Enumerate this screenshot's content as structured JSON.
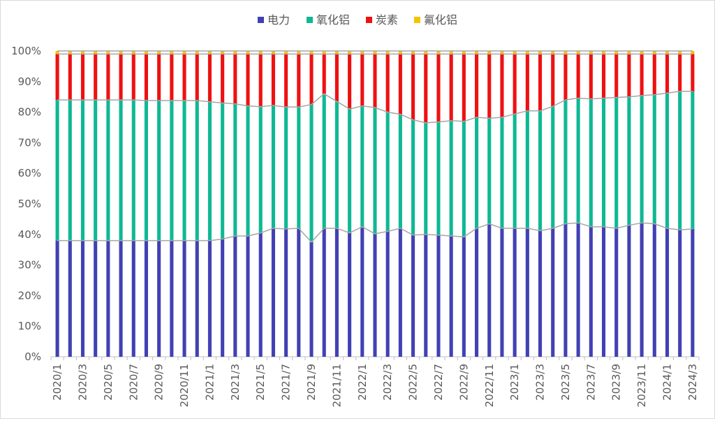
{
  "chart_data": {
    "type": "bar",
    "stacked": true,
    "percent_stacked": true,
    "title": "",
    "xlabel": "",
    "ylabel": "",
    "ylim": [
      0,
      100
    ],
    "yticks": [
      "0%",
      "10%",
      "20%",
      "30%",
      "40%",
      "50%",
      "60%",
      "70%",
      "80%",
      "90%",
      "100%"
    ],
    "legend_position": "top",
    "grid": false,
    "categories": [
      "2020/1",
      "2020/2",
      "2020/3",
      "2020/4",
      "2020/5",
      "2020/6",
      "2020/7",
      "2020/8",
      "2020/9",
      "2020/10",
      "2020/11",
      "2020/12",
      "2021/1",
      "2021/2",
      "2021/3",
      "2021/4",
      "2021/5",
      "2021/6",
      "2021/7",
      "2021/8",
      "2021/9",
      "2021/10",
      "2021/11",
      "2021/12",
      "2022/1",
      "2022/2",
      "2022/3",
      "2022/4",
      "2022/5",
      "2022/6",
      "2022/7",
      "2022/8",
      "2022/9",
      "2022/10",
      "2022/11",
      "2022/12",
      "2023/1",
      "2023/2",
      "2023/3",
      "2023/4",
      "2023/5",
      "2023/6",
      "2023/7",
      "2023/8",
      "2023/9",
      "2023/10",
      "2023/11",
      "2023/12",
      "2024/1",
      "2024/2",
      "2024/3"
    ],
    "xtick_labels": [
      "2020/1",
      "2020/3",
      "2020/5",
      "2020/7",
      "2020/9",
      "2020/11",
      "2021/1",
      "2021/3",
      "2021/5",
      "2021/7",
      "2021/9",
      "2021/11",
      "2022/1",
      "2022/3",
      "2022/5",
      "2022/7",
      "2022/9",
      "2022/11",
      "2023/1",
      "2023/3",
      "2023/5",
      "2023/7",
      "2023/9",
      "2023/11",
      "2024/1",
      "2024/3"
    ],
    "series": [
      {
        "name": "电力",
        "color": "#4141b4",
        "values": [
          38,
          38,
          38,
          38,
          38,
          38,
          38,
          38,
          38,
          38,
          38,
          38,
          38,
          38.5,
          39.5,
          39.5,
          40.5,
          42,
          41.8,
          42,
          37.5,
          42,
          42,
          40.5,
          42.5,
          40.2,
          41,
          42,
          39.8,
          40,
          39.8,
          39.5,
          39.2,
          42,
          43.5,
          42,
          42,
          42,
          41.2,
          42,
          43.5,
          43.8,
          42.5,
          42.5,
          42,
          43,
          43.8,
          43.5,
          42,
          41.5,
          41.8
        ]
      },
      {
        "name": "氧化铝",
        "color": "#0fb894",
        "values": [
          46,
          46,
          46,
          46,
          46,
          46,
          46,
          45.8,
          45.8,
          45.8,
          45.8,
          45.8,
          45.4,
          44.5,
          43.2,
          42.5,
          41.3,
          40.2,
          39.9,
          39.7,
          45,
          44,
          41.5,
          40.5,
          39.5,
          41.3,
          39,
          37.3,
          37.7,
          36.5,
          37,
          37.7,
          37.8,
          36.3,
          34.5,
          36.3,
          37.4,
          38.4,
          39.2,
          39.9,
          40.5,
          40.8,
          41.8,
          42.1,
          42.8,
          42,
          41.6,
          42.2,
          44.2,
          45.3,
          45
        ]
      },
      {
        "name": "炭素",
        "color": "#ee1111",
        "values": [
          15,
          15,
          15,
          15,
          15,
          15,
          15,
          15.2,
          15.2,
          15.2,
          15.2,
          15.2,
          15.6,
          16,
          16.3,
          17,
          17.2,
          16.8,
          17.3,
          17.3,
          16.5,
          13,
          15.5,
          18,
          17,
          17.5,
          19,
          19.7,
          21.5,
          22.5,
          22.2,
          21.8,
          22,
          20.7,
          21,
          20.7,
          19.6,
          18.6,
          18.6,
          17.1,
          15,
          14.4,
          14.7,
          14.4,
          14.2,
          14,
          13.6,
          13.3,
          12.8,
          12.2,
          12.2
        ]
      },
      {
        "name": "氟化铝",
        "color": "#f5c400",
        "values": [
          1,
          1,
          1,
          1,
          1,
          1,
          1,
          1,
          1,
          1,
          1,
          1,
          1,
          1,
          1,
          1,
          1,
          1,
          1,
          1,
          1,
          1,
          1,
          1,
          1,
          1,
          1,
          1,
          1,
          1,
          1,
          1,
          1,
          1,
          1,
          1,
          1,
          1,
          1,
          1,
          1,
          1,
          1,
          1,
          1,
          1,
          1,
          1,
          1,
          1,
          1
        ]
      }
    ]
  }
}
